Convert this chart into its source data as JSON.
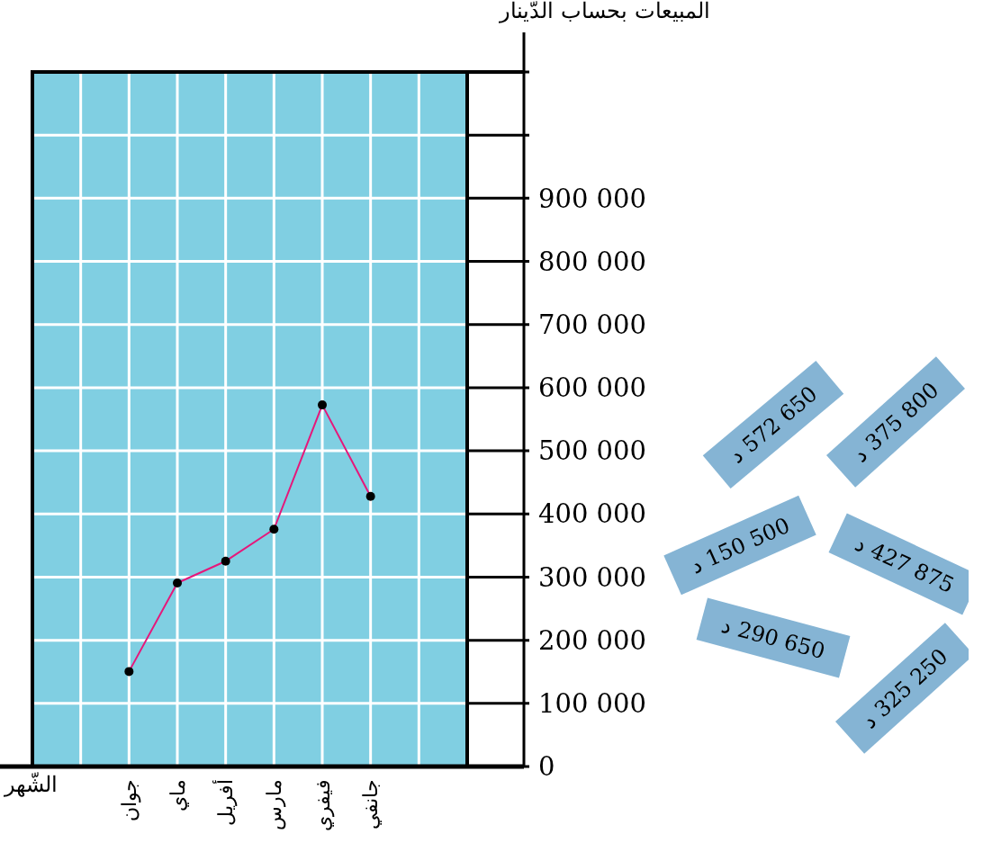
{
  "chart_data": {
    "type": "line",
    "xlabel": "الشّهر",
    "ylabel": "المبيعات بحساب الدّينار",
    "categories": [
      null,
      null,
      "جوان",
      "ماي",
      "أفريل",
      "مارس",
      "فيفري",
      "جانفي",
      null
    ],
    "series": [
      {
        "color": "#e6177a",
        "values": [
          null,
          null,
          150500,
          290650,
          325250,
          375800,
          572650,
          427875,
          null
        ]
      }
    ],
    "ylim": [
      0,
      1100000
    ],
    "yticks": [
      {
        "value": 0,
        "label": "0"
      },
      {
        "value": 100000,
        "label": "100 000"
      },
      {
        "value": 200000,
        "label": "200 000"
      },
      {
        "value": 300000,
        "label": "300 000"
      },
      {
        "value": 400000,
        "label": "400 000"
      },
      {
        "value": 500000,
        "label": "500 000"
      },
      {
        "value": 600000,
        "label": "600 000"
      },
      {
        "value": 700000,
        "label": "700 000"
      },
      {
        "value": 800000,
        "label": "800 000"
      },
      {
        "value": 900000,
        "label": "900 000"
      },
      {
        "value": 1000000,
        "label": null
      },
      {
        "value": 1100000,
        "label": null
      }
    ],
    "grid": true,
    "marker": "circle",
    "line_style": "solid",
    "annotations": [
      "د 572 650",
      "د 375 800",
      "د 150 500",
      "د 427 875",
      "د 290 650",
      "د 325 250"
    ]
  }
}
